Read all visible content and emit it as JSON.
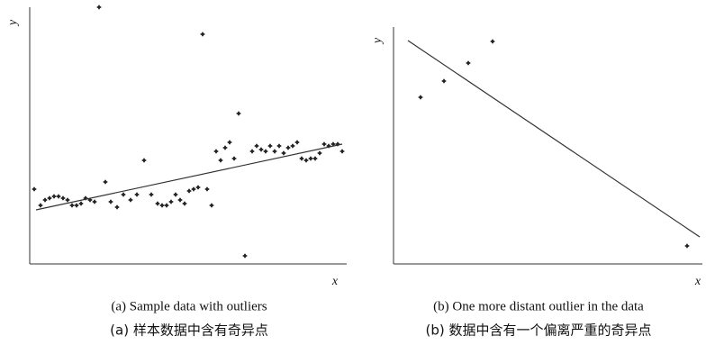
{
  "chart_data": [
    {
      "type": "scatter",
      "x_label": "x",
      "y_label": "y",
      "caption_en": "(a) Sample data with outliers",
      "caption_zh": "(a)  样本数据中含有奇异点",
      "xlim": [
        0,
        352
      ],
      "ylim": [
        0,
        285
      ],
      "color": "#222",
      "x": [
        5,
        12,
        17,
        22,
        27,
        32,
        37,
        42,
        47,
        52,
        57,
        62,
        67,
        72,
        77,
        84,
        90,
        97,
        104,
        112,
        119,
        127,
        135,
        142,
        147,
        152,
        157,
        162,
        167,
        172,
        177,
        182,
        187,
        192,
        197,
        202,
        207,
        212,
        217,
        222,
        227,
        232,
        239,
        247,
        252,
        257,
        262,
        267,
        272,
        277,
        282,
        287,
        292,
        297,
        302,
        307,
        312,
        317,
        322,
        327,
        332,
        337,
        342,
        347
      ],
      "values": [
        83,
        65,
        71,
        73,
        75,
        75,
        73,
        71,
        65,
        65,
        67,
        73,
        71,
        69,
        285,
        91,
        69,
        63,
        77,
        71,
        77,
        115,
        77,
        67,
        65,
        65,
        69,
        77,
        71,
        67,
        81,
        83,
        85,
        255,
        83,
        65,
        125,
        115,
        129,
        135,
        117,
        167,
        9,
        125,
        131,
        127,
        125,
        131,
        125,
        131,
        123,
        129,
        131,
        135,
        117,
        115,
        117,
        117,
        123,
        133,
        131,
        133,
        133,
        125
      ],
      "fit": {
        "x": [
          7,
          347
        ],
        "y": [
          60,
          133
        ]
      }
    },
    {
      "type": "scatter",
      "x_label": "x",
      "y_label": "y",
      "caption_en": "(b) One more distant outlier in the data",
      "caption_zh": "(b)  数据中含有一个偏离严重的奇异点",
      "xlim": [
        0,
        343
      ],
      "ylim": [
        0,
        263
      ],
      "color": "#222",
      "x": [
        30,
        56,
        83,
        110,
        326
      ],
      "values": [
        185,
        203,
        223,
        247,
        20
      ],
      "fit": {
        "x": [
          16,
          340
        ],
        "y": [
          248,
          30
        ]
      }
    }
  ]
}
